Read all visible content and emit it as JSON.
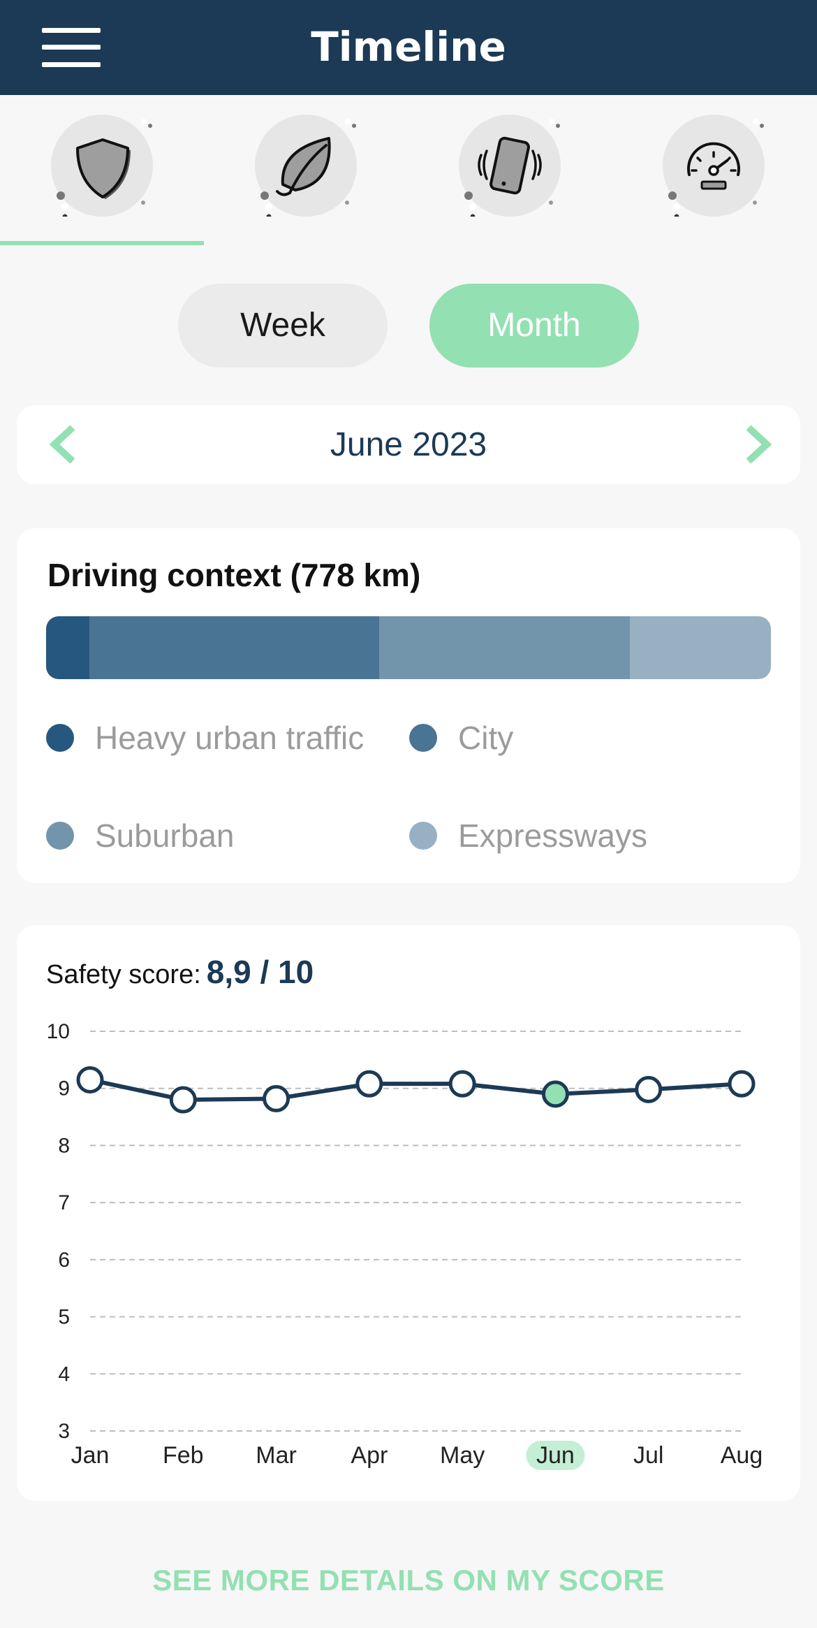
{
  "header": {
    "title": "Timeline",
    "menu_icon": "hamburger-menu-icon"
  },
  "tabs": [
    {
      "id": "safety",
      "icon": "shield-icon",
      "selected": true
    },
    {
      "id": "eco",
      "icon": "leaf-icon",
      "selected": false
    },
    {
      "id": "distraction",
      "icon": "phone-vibrate-icon",
      "selected": false
    },
    {
      "id": "speed",
      "icon": "speedometer-icon",
      "selected": false
    }
  ],
  "period_toggle": {
    "week_label": "Week",
    "month_label": "Month",
    "selected": "Month"
  },
  "period": {
    "label": "June 2023",
    "prev_icon": "chevron-left-icon",
    "next_icon": "chevron-right-icon"
  },
  "driving_context": {
    "title": "Driving context (778 km)",
    "segments": [
      {
        "name": "Heavy urban traffic",
        "share": 0.06,
        "color": "#26577f"
      },
      {
        "name": "City",
        "share": 0.4,
        "color": "#4a7494"
      },
      {
        "name": "Suburban",
        "share": 0.345,
        "color": "#7295ab"
      },
      {
        "name": "Expressways",
        "share": 0.195,
        "color": "#97b1c3"
      }
    ]
  },
  "safety_score": {
    "label": "Safety score:",
    "value": "8,9 / 10"
  },
  "chart_data": {
    "type": "line",
    "categories": [
      "Jan",
      "Feb",
      "Mar",
      "Apr",
      "May",
      "Jun",
      "Jul",
      "Aug"
    ],
    "series": [
      {
        "values": [
          9.15,
          8.8,
          8.82,
          9.08,
          9.08,
          8.9,
          8.98,
          9.08
        ]
      }
    ],
    "highlighted_category": "Jun",
    "ylim": [
      3,
      10
    ],
    "yticks": [
      10,
      9,
      8,
      7,
      6,
      5,
      4,
      3
    ],
    "grid": true,
    "colors": {
      "line": "#1c3a55",
      "highlight": "#93e0b3",
      "grid": "#bdbdbd"
    }
  },
  "details_link": "SEE MORE DETAILS ON MY SCORE",
  "colors": {
    "header_bg": "#1c3a55",
    "accent": "#93e0b3"
  }
}
